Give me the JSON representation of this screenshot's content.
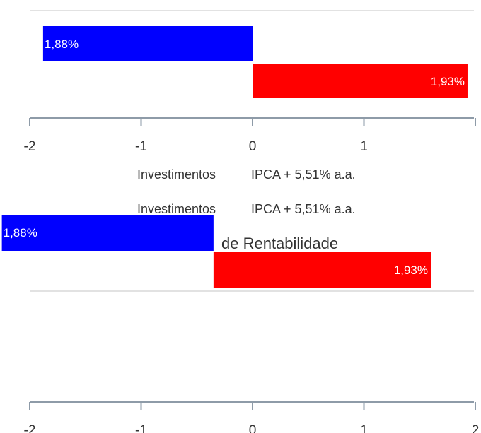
{
  "chart_data": [
    {
      "type": "bar",
      "orientation": "horizontal",
      "xlim": [
        -2,
        2
      ],
      "ticks": [
        "-2",
        "-1",
        "0",
        "1"
      ],
      "grid": true,
      "bars": [
        {
          "start": -1.88,
          "end": 0,
          "label": "1,88%",
          "color": "#0000ff"
        },
        {
          "start": 0,
          "end": 1.93,
          "label": "1,93%",
          "color": "#ff0000"
        }
      ],
      "legend": [
        {
          "label": "Investimentos",
          "value": "IPCA + 5,51% a.a."
        }
      ]
    },
    {
      "type": "bar",
      "orientation": "horizontal",
      "xlim": [
        -2,
        2
      ],
      "ticks": [
        "-2",
        "-1",
        "0",
        "1",
        "2"
      ],
      "grid": true,
      "title_fragment": "de Rentabilidade",
      "bars": [
        {
          "start": -2.25,
          "end": -0.35,
          "label": "1,88%",
          "color": "#0000ff"
        },
        {
          "start": -0.35,
          "end": 1.6,
          "label": "1,93%",
          "color": "#ff0000"
        }
      ],
      "legend": [
        {
          "label": "Investimentos",
          "value": "IPCA + 5,51% a.a."
        }
      ]
    }
  ]
}
